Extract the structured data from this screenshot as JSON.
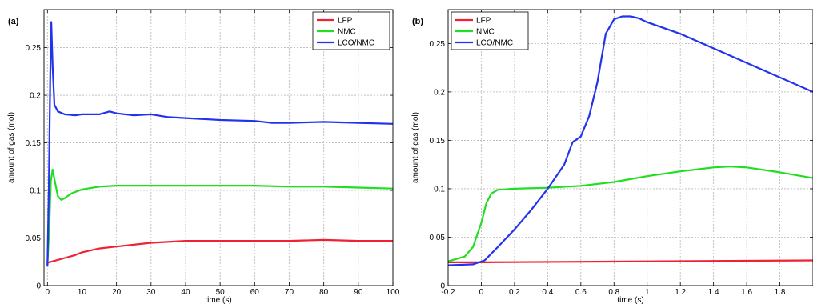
{
  "chart_data": [
    {
      "type": "line",
      "panel_label": "(a)",
      "xlabel": "time (s)",
      "ylabel": "amount of gas (mol)",
      "xlim": [
        -1,
        100
      ],
      "ylim": [
        0,
        0.29
      ],
      "xticks": [
        0,
        10,
        20,
        30,
        40,
        50,
        60,
        70,
        80,
        90,
        100
      ],
      "yticks": [
        0,
        0.05,
        0.1,
        0.15,
        0.2,
        0.25
      ],
      "ytick_labels": [
        "0",
        "0.05",
        "0.1",
        "0.15",
        "0.2",
        "0.25"
      ],
      "grid": true,
      "legend_position": "top-right",
      "series": [
        {
          "name": "LFP",
          "color": "#ee2233",
          "x": [
            0,
            2,
            5,
            8,
            10,
            15,
            20,
            30,
            40,
            50,
            60,
            70,
            80,
            90,
            100
          ],
          "y": [
            0.024,
            0.026,
            0.029,
            0.032,
            0.035,
            0.039,
            0.041,
            0.045,
            0.047,
            0.047,
            0.047,
            0.047,
            0.048,
            0.047,
            0.047
          ]
        },
        {
          "name": "NMC",
          "color": "#22dd22",
          "x": [
            0,
            0.5,
            1,
            1.5,
            2,
            3,
            4,
            5,
            7,
            10,
            15,
            20,
            30,
            40,
            50,
            60,
            70,
            80,
            90,
            100
          ],
          "y": [
            0.022,
            0.06,
            0.11,
            0.122,
            0.112,
            0.094,
            0.09,
            0.092,
            0.097,
            0.101,
            0.104,
            0.105,
            0.105,
            0.105,
            0.105,
            0.105,
            0.104,
            0.104,
            0.103,
            0.102
          ]
        },
        {
          "name": "LCO/NMC",
          "color": "#2233ee",
          "x": [
            0,
            0.4,
            0.8,
            1.1,
            1.5,
            2,
            3,
            5,
            8,
            10,
            15,
            18,
            20,
            25,
            30,
            35,
            40,
            50,
            60,
            65,
            70,
            80,
            90,
            100
          ],
          "y": [
            0.02,
            0.1,
            0.22,
            0.277,
            0.23,
            0.19,
            0.183,
            0.18,
            0.179,
            0.18,
            0.18,
            0.183,
            0.181,
            0.179,
            0.18,
            0.177,
            0.176,
            0.174,
            0.173,
            0.171,
            0.171,
            0.172,
            0.171,
            0.17
          ]
        }
      ]
    },
    {
      "type": "line",
      "panel_label": "(b)",
      "xlabel": "time (s)",
      "ylabel": "amount of gas (mol)",
      "xlim": [
        -0.2,
        2.0
      ],
      "ylim": [
        0,
        0.285
      ],
      "xticks": [
        -0.2,
        0,
        0.2,
        0.4,
        0.6,
        0.8,
        1,
        1.2,
        1.4,
        1.6,
        1.8
      ],
      "xtick_labels": [
        "-0.2",
        "0",
        "0.2",
        "0.4",
        "0.6",
        "0.8",
        "1",
        "1.2",
        "1.4",
        "1.6",
        "1.8"
      ],
      "yticks": [
        0,
        0.05,
        0.1,
        0.15,
        0.2,
        0.25
      ],
      "ytick_labels": [
        "0",
        "0.05",
        "0.1",
        "0.15",
        "0.2",
        "0.25"
      ],
      "grid": true,
      "legend_position": "top-left",
      "series": [
        {
          "name": "LFP",
          "color": "#ee2233",
          "x": [
            -0.2,
            0,
            0.5,
            1.0,
            1.5,
            2.0
          ],
          "y": [
            0.024,
            0.024,
            0.0245,
            0.025,
            0.0255,
            0.026
          ]
        },
        {
          "name": "NMC",
          "color": "#22dd22",
          "x": [
            -0.2,
            -0.1,
            -0.05,
            0,
            0.03,
            0.06,
            0.1,
            0.2,
            0.4,
            0.6,
            0.8,
            1.0,
            1.2,
            1.4,
            1.5,
            1.6,
            1.8,
            2.0
          ],
          "y": [
            0.025,
            0.03,
            0.04,
            0.065,
            0.085,
            0.095,
            0.099,
            0.1,
            0.101,
            0.103,
            0.107,
            0.113,
            0.118,
            0.122,
            0.123,
            0.122,
            0.117,
            0.111
          ]
        },
        {
          "name": "LCO/NMC",
          "color": "#2233ee",
          "x": [
            -0.2,
            -0.05,
            0.02,
            0.1,
            0.2,
            0.3,
            0.4,
            0.5,
            0.55,
            0.6,
            0.65,
            0.7,
            0.75,
            0.8,
            0.85,
            0.9,
            0.95,
            1.0,
            1.2,
            1.4,
            1.6,
            1.8,
            2.0
          ],
          "y": [
            0.021,
            0.022,
            0.026,
            0.04,
            0.058,
            0.078,
            0.1,
            0.125,
            0.148,
            0.154,
            0.175,
            0.21,
            0.26,
            0.275,
            0.278,
            0.278,
            0.276,
            0.272,
            0.26,
            0.245,
            0.23,
            0.215,
            0.2
          ]
        }
      ]
    }
  ]
}
